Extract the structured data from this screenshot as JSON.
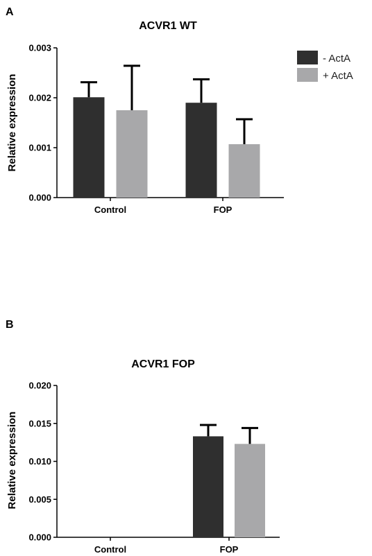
{
  "chart_data": [
    {
      "panel": "A",
      "type": "bar",
      "title": "ACVR1 WT",
      "ylabel": "Relative expression",
      "xlabel": "",
      "ylim": [
        0,
        0.003
      ],
      "yticks": [
        "0.000",
        "0.001",
        "0.002",
        "0.003"
      ],
      "categories": [
        "Control",
        "FOP"
      ],
      "series": [
        {
          "name": "- ActA",
          "color": "#2f2f2f",
          "values": [
            0.00201,
            0.0019
          ],
          "errors": [
            0.0003,
            0.00047
          ]
        },
        {
          "name": "+ ActA",
          "color": "#a8a8aa",
          "values": [
            0.00175,
            0.00107
          ],
          "errors": [
            0.00089,
            0.0005
          ]
        }
      ],
      "legend": "right"
    },
    {
      "panel": "B",
      "type": "bar",
      "title": "ACVR1 FOP",
      "ylabel": "Relative expression",
      "xlabel": "",
      "ylim": [
        0,
        0.02
      ],
      "yticks": [
        "0.000",
        "0.005",
        "0.010",
        "0.015",
        "0.020"
      ],
      "categories": [
        "Control",
        "FOP"
      ],
      "series": [
        {
          "name": "- ActA",
          "color": "#2f2f2f",
          "values": [
            0,
            0.0133
          ],
          "errors": [
            0,
            0.0015
          ]
        },
        {
          "name": "+ ActA",
          "color": "#a8a8aa",
          "values": [
            0,
            0.0123
          ],
          "errors": [
            0,
            0.0021
          ]
        }
      ]
    }
  ]
}
